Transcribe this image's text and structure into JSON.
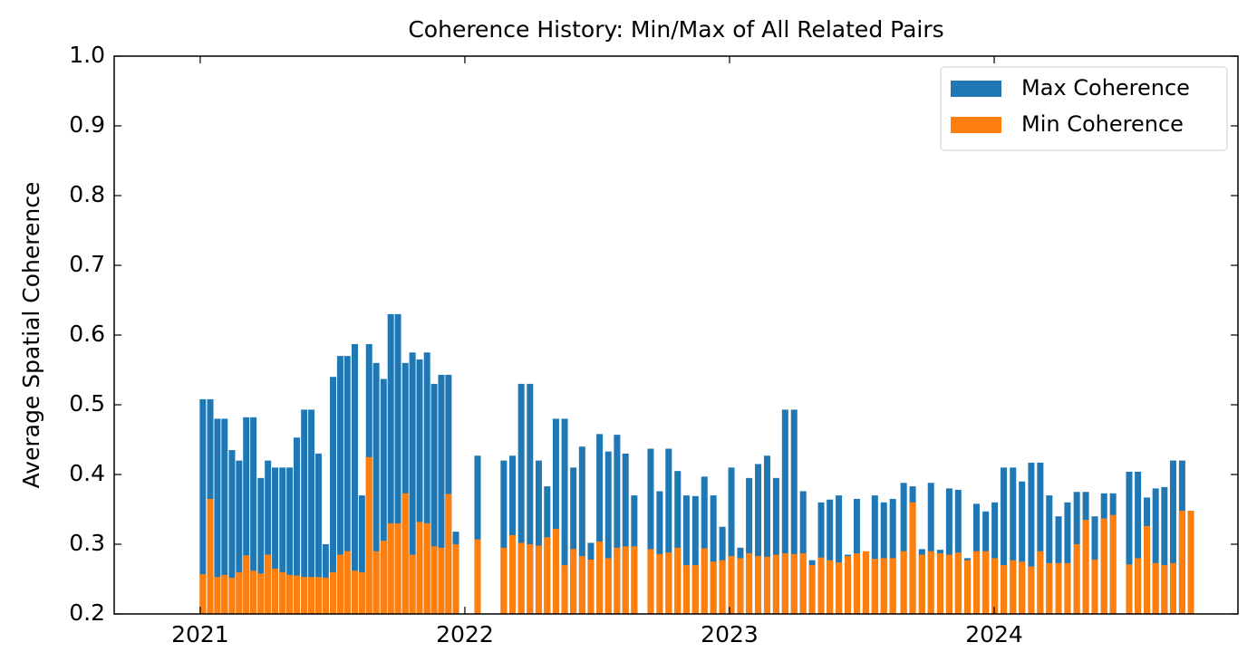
{
  "chart_data": {
    "type": "bar",
    "title": "Coherence History: Min/Max of All Related Pairs",
    "y_label": "Average Spatial Coherence",
    "x": [
      2021.01,
      2021.038,
      2021.065,
      2021.092,
      2021.12,
      2021.147,
      2021.174,
      2021.201,
      2021.229,
      2021.256,
      2021.283,
      2021.311,
      2021.338,
      2021.365,
      2021.393,
      2021.42,
      2021.447,
      2021.474,
      2021.502,
      2021.529,
      2021.556,
      2021.584,
      2021.611,
      2021.638,
      2021.665,
      2021.693,
      2021.72,
      2021.747,
      2021.775,
      2021.802,
      2021.829,
      2021.857,
      2021.884,
      2021.911,
      2021.938,
      2021.966,
      2022.048,
      2022.147,
      2022.18,
      2022.213,
      2022.246,
      2022.279,
      2022.311,
      2022.344,
      2022.377,
      2022.41,
      2022.443,
      2022.476,
      2022.509,
      2022.542,
      2022.575,
      2022.607,
      2022.64,
      2022.702,
      2022.736,
      2022.77,
      2022.804,
      2022.837,
      2022.871,
      2022.905,
      2022.939,
      2022.973,
      2023.007,
      2023.041,
      2023.074,
      2023.108,
      2023.142,
      2023.176,
      2023.21,
      2023.244,
      2023.278,
      2023.312,
      2023.346,
      2023.379,
      2023.413,
      2023.447,
      2023.481,
      2023.515,
      2023.549,
      2023.583,
      2023.617,
      2023.658,
      2023.692,
      2023.727,
      2023.761,
      2023.796,
      2023.83,
      2023.864,
      2023.899,
      2023.933,
      2023.968,
      2024.002,
      2024.036,
      2024.071,
      2024.105,
      2024.14,
      2024.174,
      2024.208,
      2024.243,
      2024.277,
      2024.312,
      2024.346,
      2024.38,
      2024.415,
      2024.449,
      2024.51,
      2024.543,
      2024.577,
      2024.61,
      2024.643,
      2024.676,
      2024.71,
      2024.743
    ],
    "series": [
      {
        "name": "Max Coherence",
        "color": "#1f77b4",
        "values": [
          0.508,
          0.508,
          0.48,
          0.48,
          0.435,
          0.42,
          0.482,
          0.482,
          0.395,
          0.42,
          0.41,
          0.41,
          0.41,
          0.453,
          0.493,
          0.493,
          0.43,
          0.3,
          0.54,
          0.57,
          0.57,
          0.587,
          0.37,
          0.587,
          0.56,
          0.537,
          0.63,
          0.63,
          0.56,
          0.575,
          0.565,
          0.575,
          0.53,
          0.543,
          0.543,
          0.318,
          0.427,
          0.42,
          0.427,
          0.53,
          0.53,
          0.42,
          0.383,
          0.48,
          0.48,
          0.41,
          0.44,
          0.302,
          0.458,
          0.433,
          0.457,
          0.43,
          0.37,
          0.437,
          0.376,
          0.437,
          0.405,
          0.37,
          0.369,
          0.397,
          0.37,
          0.325,
          0.41,
          0.295,
          0.395,
          0.415,
          0.427,
          0.395,
          0.493,
          0.493,
          0.376,
          0.277,
          0.36,
          0.364,
          0.37,
          0.285,
          0.365,
          0.285,
          0.37,
          0.36,
          0.365,
          0.388,
          0.383,
          0.293,
          0.388,
          0.292,
          0.38,
          0.378,
          0.28,
          0.358,
          0.347,
          0.36,
          0.41,
          0.41,
          0.39,
          0.417,
          0.417,
          0.37,
          0.34,
          0.36,
          0.375,
          0.375,
          0.34,
          0.373,
          0.373,
          0.404,
          0.404,
          0.367,
          0.38,
          0.382,
          0.42,
          0.42,
          0.348
        ]
      },
      {
        "name": "Min Coherence",
        "color": "#ff7f0e",
        "values": [
          0.257,
          0.365,
          0.253,
          0.256,
          0.252,
          0.26,
          0.284,
          0.262,
          0.258,
          0.285,
          0.265,
          0.26,
          0.256,
          0.255,
          0.253,
          0.253,
          0.253,
          0.252,
          0.26,
          0.285,
          0.29,
          0.262,
          0.26,
          0.425,
          0.29,
          0.305,
          0.33,
          0.33,
          0.373,
          0.285,
          0.332,
          0.33,
          0.297,
          0.295,
          0.372,
          0.3,
          0.307,
          0.295,
          0.313,
          0.302,
          0.3,
          0.298,
          0.31,
          0.322,
          0.27,
          0.293,
          0.283,
          0.278,
          0.304,
          0.28,
          0.295,
          0.297,
          0.297,
          0.293,
          0.286,
          0.288,
          0.295,
          0.27,
          0.27,
          0.294,
          0.275,
          0.277,
          0.283,
          0.28,
          0.287,
          0.283,
          0.282,
          0.285,
          0.287,
          0.286,
          0.287,
          0.27,
          0.281,
          0.277,
          0.274,
          0.283,
          0.287,
          0.29,
          0.279,
          0.28,
          0.28,
          0.29,
          0.36,
          0.285,
          0.29,
          0.287,
          0.285,
          0.288,
          0.277,
          0.29,
          0.29,
          0.28,
          0.27,
          0.277,
          0.275,
          0.268,
          0.29,
          0.273,
          0.273,
          0.273,
          0.3,
          0.335,
          0.278,
          0.337,
          0.342,
          0.271,
          0.28,
          0.326,
          0.273,
          0.27,
          0.273,
          0.348,
          0.348
        ]
      }
    ],
    "xlim": [
      2020.675,
      2024.921
    ],
    "xticks": [
      2021,
      2022,
      2023,
      2024
    ],
    "ylim": [
      0.2,
      1
    ],
    "yticks": [
      0.2,
      0.3,
      0.4,
      0.5,
      0.6,
      0.7,
      0.8,
      0.9,
      {
        "value": 1,
        "label": "1.0"
      }
    ],
    "legend": "upper right"
  }
}
